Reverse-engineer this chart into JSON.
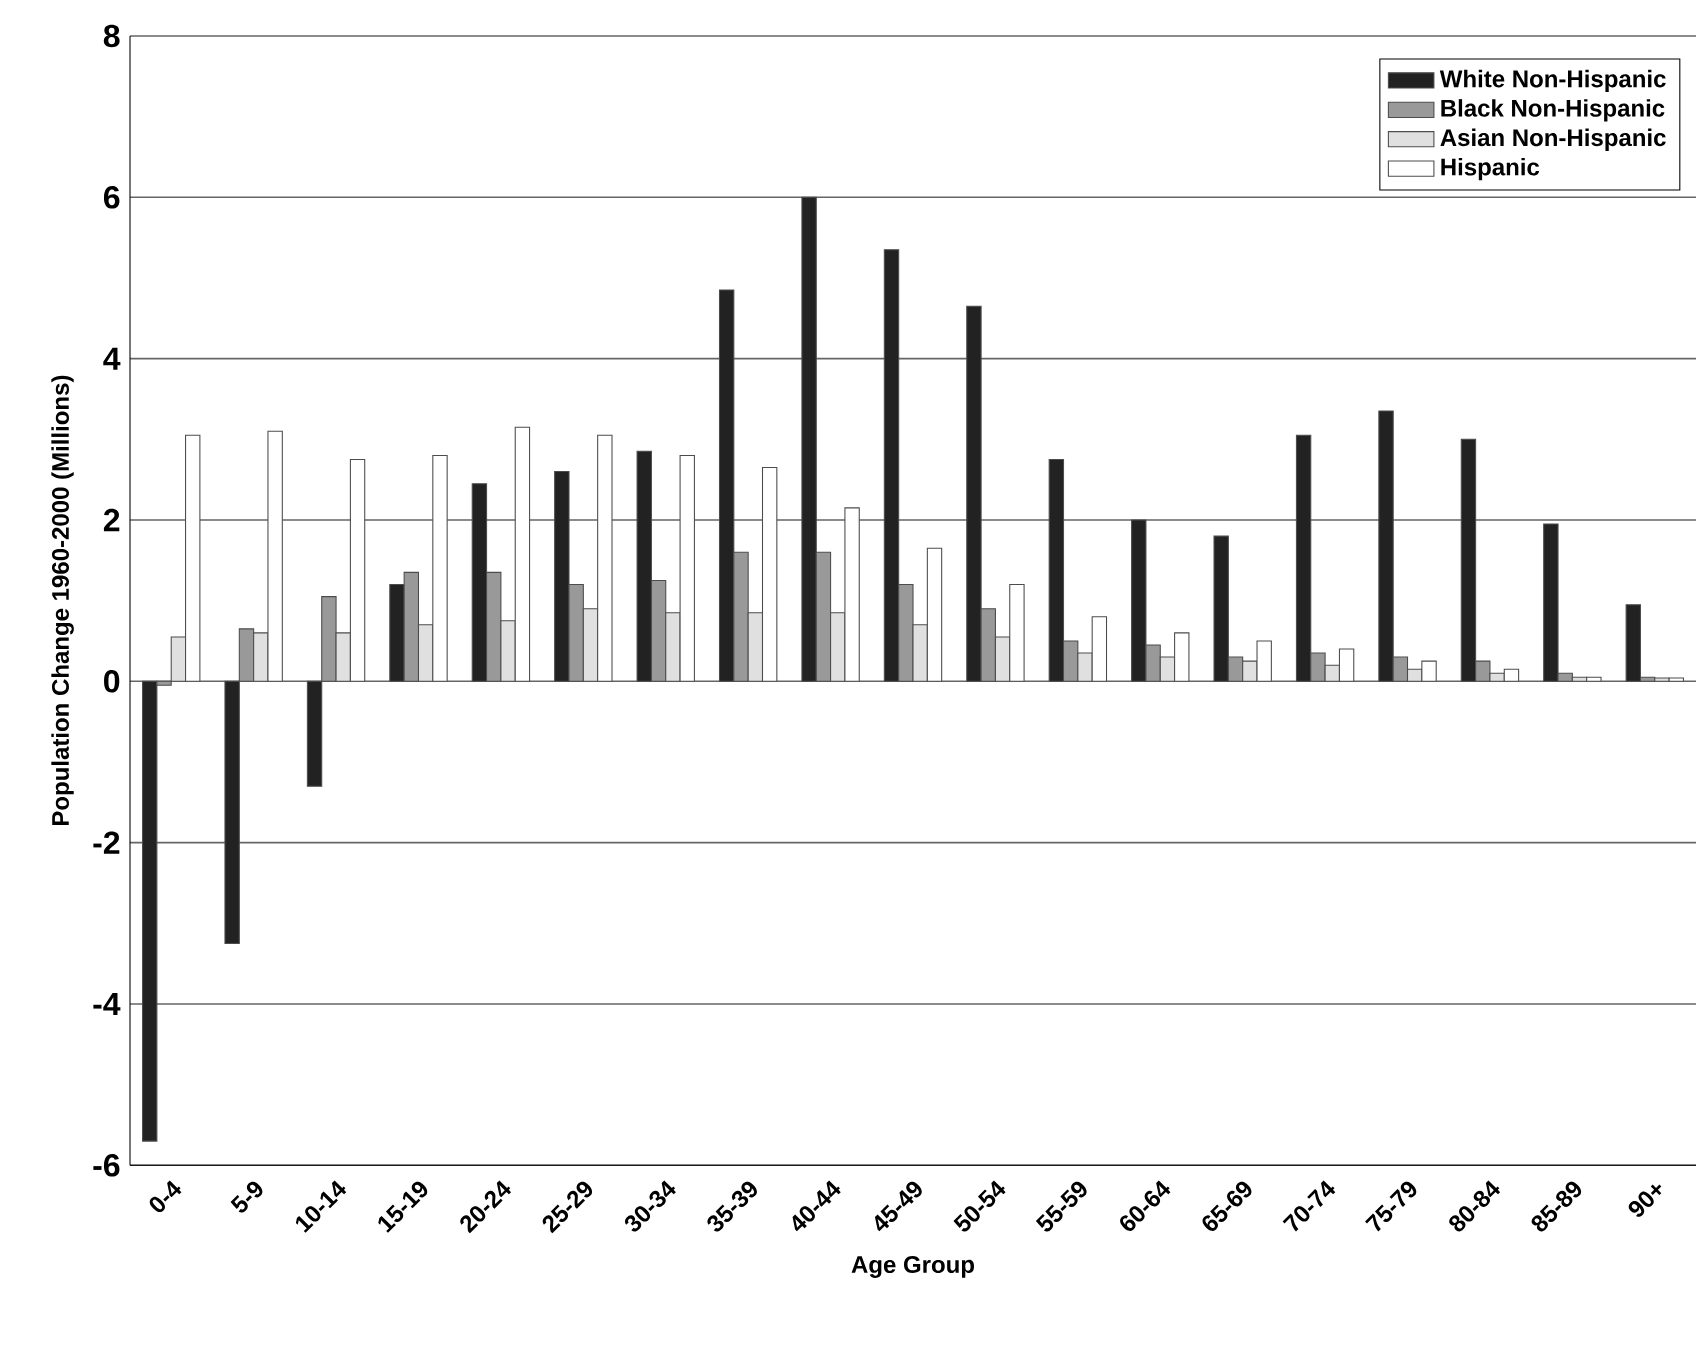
{
  "chart_data": {
    "type": "bar",
    "xlabel": "Age Group",
    "ylabel": "Population Change 1960-2000 (Millions)",
    "categories": [
      "0-4",
      "5-9",
      "10-14",
      "15-19",
      "20-24",
      "25-29",
      "30-34",
      "35-39",
      "40-44",
      "45-49",
      "50-54",
      "55-59",
      "60-64",
      "65-69",
      "70-74",
      "75-79",
      "80-84",
      "85-89",
      "90+"
    ],
    "series": [
      {
        "name": "White Non-Hispanic",
        "color": "#222222",
        "values": [
          -5.7,
          -3.25,
          -1.3,
          1.2,
          2.45,
          2.6,
          2.85,
          4.85,
          6.0,
          5.35,
          4.65,
          2.75,
          2.0,
          1.8,
          3.05,
          3.35,
          3.0,
          1.95,
          0.95
        ]
      },
      {
        "name": "Black Non-Hispanic",
        "color": "#999999",
        "values": [
          -0.05,
          0.65,
          1.05,
          1.35,
          1.35,
          1.2,
          1.25,
          1.6,
          1.6,
          1.2,
          0.9,
          0.5,
          0.45,
          0.3,
          0.35,
          0.3,
          0.25,
          0.1,
          0.05
        ]
      },
      {
        "name": "Asian Non-Hispanic",
        "color": "#e0e0e0",
        "values": [
          0.55,
          0.6,
          0.6,
          0.7,
          0.75,
          0.9,
          0.85,
          0.85,
          0.85,
          0.7,
          0.55,
          0.35,
          0.3,
          0.25,
          0.2,
          0.15,
          0.1,
          0.05,
          0.04
        ]
      },
      {
        "name": "Hispanic",
        "color": "#ffffff",
        "values": [
          3.05,
          3.1,
          2.75,
          2.8,
          3.15,
          3.05,
          2.8,
          2.65,
          2.15,
          1.65,
          1.2,
          0.8,
          0.6,
          0.5,
          0.4,
          0.25,
          0.15,
          0.05,
          0.04
        ]
      }
    ],
    "ylim": [
      -6,
      8
    ],
    "yticks": [
      -6,
      -4,
      -2,
      0,
      2,
      4,
      6,
      8
    ],
    "grid": "y",
    "legend": "top right"
  }
}
